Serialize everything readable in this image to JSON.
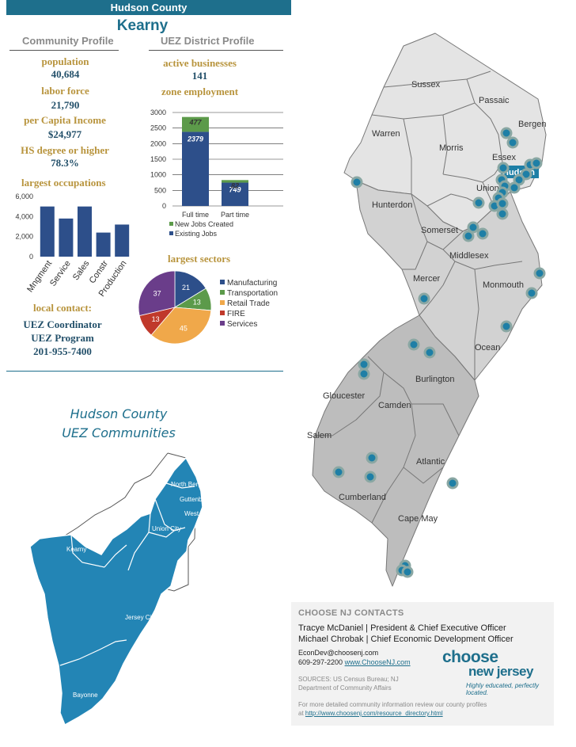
{
  "header": {
    "county": "Hudson County",
    "city": "Kearny"
  },
  "community_profile": {
    "title": "Community Profile",
    "population_label": "population",
    "population": "40,684",
    "labor_force_label": "labor force",
    "labor_force": "21,790",
    "per_capita_label": "per Capita Income",
    "per_capita": "$24,977",
    "hs_label": "HS degree or higher",
    "hs": "78.3%",
    "occupations_label": "largest occupations"
  },
  "uez_profile": {
    "title": "UEZ District Profile",
    "active_label": "active businesses",
    "active": "141",
    "employment_label": "zone employment",
    "sectors_label": "largest sectors"
  },
  "chart_data": [
    {
      "type": "bar",
      "title": "largest occupations",
      "categories": [
        "Mngment",
        "Service",
        "Sales",
        "Constr",
        "Production"
      ],
      "values": [
        5000,
        3800,
        5000,
        2400,
        3200
      ],
      "ylim": [
        0,
        6000
      ],
      "yticks": [
        "0",
        "2,000",
        "4,000",
        "6,000"
      ]
    },
    {
      "type": "bar",
      "stacked": true,
      "title": "zone employment",
      "categories": [
        "Full time",
        "Part time"
      ],
      "series": [
        {
          "name": "Existing Jobs",
          "values": [
            2379,
            749
          ],
          "color": "#2d4f8a"
        },
        {
          "name": "New Jobs Created",
          "values": [
            477,
            82
          ],
          "color": "#5c9a4a"
        }
      ],
      "ylim": [
        0,
        3000
      ],
      "yticks": [
        "0",
        "500",
        "1000",
        "1500",
        "2000",
        "2500",
        "3000"
      ],
      "labels": {
        "ft_existing": "2379",
        "ft_new": "477",
        "pt_existing": "749",
        "pt_new": "82"
      }
    },
    {
      "type": "pie",
      "title": "largest sectors",
      "slices": [
        {
          "name": "Manufacturing",
          "value": 21,
          "color": "#2d4f8a"
        },
        {
          "name": "Transportation",
          "value": 13,
          "color": "#5c9a4a"
        },
        {
          "name": "Retail Trade",
          "value": 45,
          "color": "#f0a84a"
        },
        {
          "name": "FIRE",
          "value": 13,
          "color": "#c0392b"
        },
        {
          "name": "Services",
          "value": 37,
          "color": "#6a3d8a"
        }
      ]
    }
  ],
  "local_contact": {
    "label": "local contact:",
    "line1": "UEZ Coordinator",
    "line2": "UEZ Program",
    "phone": "201-955-7400"
  },
  "communities_map": {
    "title_line1": "Hudson County",
    "title_line2": "UEZ Communities",
    "labels": {
      "north_bergen": "North Bergen",
      "guttenberg": "Guttenberg",
      "west_ny": "West NY",
      "union_city": "Union City",
      "kearny": "Kearny",
      "jersey_city": "Jersey City",
      "bayonne": "Bayonne"
    }
  },
  "nj_map": {
    "counties": [
      "Sussex",
      "Passaic",
      "Bergen",
      "Warren",
      "Morris",
      "Essex",
      "Hudson",
      "Hunterdon",
      "Union",
      "Somerset",
      "Middlesex",
      "Mercer",
      "Monmouth",
      "Ocean",
      "Burlington",
      "Gloucester",
      "Camden",
      "Salem",
      "Atlantic",
      "Cumberland",
      "Cape May"
    ],
    "highlight": "Hudson",
    "colors": {
      "north": "#e4e4e4",
      "central": "#d0d0d0",
      "south": "#bdbdbd",
      "dot": "#1e7fa6",
      "dot_ring": "#8aa7a3"
    }
  },
  "contacts": {
    "heading": "CHOOSE NJ CONTACTS",
    "line1": "Tracye McDaniel  | President & Chief Executive Officer",
    "line2": "Michael Chrobak | Chief Economic Development Officer",
    "email": "EconDev@choosenj.com",
    "phone": "609-297-2200",
    "website": "www.ChooseNJ.com",
    "sources": "SOURCES:  US  Census  Bureau;  NJ Department of Community Affairs",
    "more_info": "For more detailed community  information review our county profiles at",
    "more_link": "http://www.choosenj.com/resource_directory.html",
    "logo_top": "choose",
    "logo_bottom": "new jersey",
    "logo_tagline": "Highly educated, perfectly located."
  }
}
